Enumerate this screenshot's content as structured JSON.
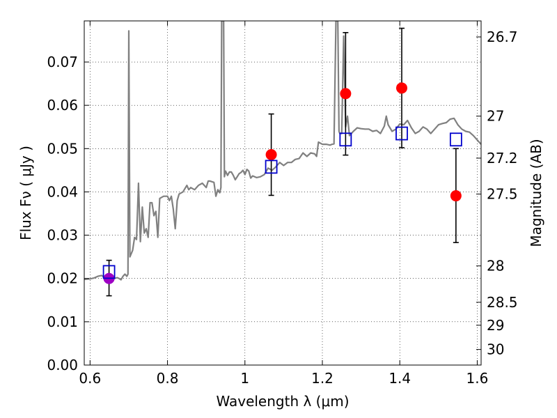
{
  "chart_data": {
    "type": "line",
    "xlabel": "Wavelength  λ (μm)",
    "ylabel": "Flux  Fν  ( μJy )",
    "y2label": "Magnitude (AB)",
    "xlim": [
      0.585,
      1.61
    ],
    "ylim": [
      0.0,
      0.0795
    ],
    "grid": true,
    "x_ticks": [
      {
        "value": 0.6,
        "label": "0.6"
      },
      {
        "value": 0.8,
        "label": "0.8"
      },
      {
        "value": 1.0,
        "label": "1"
      },
      {
        "value": 1.2,
        "label": "1.2"
      },
      {
        "value": 1.4,
        "label": "1.4"
      },
      {
        "value": 1.6,
        "label": "1.6"
      }
    ],
    "y_ticks": [
      {
        "value": 0.0,
        "label": "0.00"
      },
      {
        "value": 0.01,
        "label": "0.01"
      },
      {
        "value": 0.02,
        "label": "0.02"
      },
      {
        "value": 0.03,
        "label": "0.03"
      },
      {
        "value": 0.04,
        "label": "0.04"
      },
      {
        "value": 0.05,
        "label": "0.05"
      },
      {
        "value": 0.06,
        "label": "0.06"
      },
      {
        "value": 0.07,
        "label": "0.07"
      }
    ],
    "y2_ticks": [
      {
        "flux": 0.0758,
        "label": "26.7"
      },
      {
        "flux": 0.0575,
        "label": "27"
      },
      {
        "flux": 0.0478,
        "label": "27.2"
      },
      {
        "flux": 0.0395,
        "label": "27.5"
      },
      {
        "flux": 0.0229,
        "label": "28"
      },
      {
        "flux": 0.0145,
        "label": "28.5"
      },
      {
        "flux": 0.0092,
        "label": "29"
      },
      {
        "flux": 0.0036,
        "label": "30"
      }
    ],
    "series": [
      {
        "kind": "line",
        "color": "#808080",
        "points": [
          [
            0.585,
            0.0198
          ],
          [
            0.6,
            0.0199
          ],
          [
            0.61,
            0.0201
          ],
          [
            0.62,
            0.0205
          ],
          [
            0.63,
            0.0207
          ],
          [
            0.64,
            0.0201
          ],
          [
            0.65,
            0.0197
          ],
          [
            0.66,
            0.0199
          ],
          [
            0.67,
            0.0202
          ],
          [
            0.675,
            0.02
          ],
          [
            0.68,
            0.0197
          ],
          [
            0.685,
            0.0205
          ],
          [
            0.69,
            0.021
          ],
          [
            0.695,
            0.0205
          ],
          [
            0.698,
            0.021
          ],
          [
            0.7,
            0.0772
          ],
          [
            0.703,
            0.025
          ],
          [
            0.71,
            0.0265
          ],
          [
            0.715,
            0.0295
          ],
          [
            0.72,
            0.029
          ],
          [
            0.725,
            0.042
          ],
          [
            0.73,
            0.0285
          ],
          [
            0.735,
            0.0365
          ],
          [
            0.74,
            0.0305
          ],
          [
            0.745,
            0.0315
          ],
          [
            0.75,
            0.0295
          ],
          [
            0.755,
            0.0375
          ],
          [
            0.76,
            0.0375
          ],
          [
            0.765,
            0.0345
          ],
          [
            0.77,
            0.0355
          ],
          [
            0.775,
            0.0295
          ],
          [
            0.78,
            0.0385
          ],
          [
            0.79,
            0.039
          ],
          [
            0.8,
            0.039
          ],
          [
            0.805,
            0.038
          ],
          [
            0.81,
            0.039
          ],
          [
            0.815,
            0.036
          ],
          [
            0.82,
            0.0315
          ],
          [
            0.825,
            0.038
          ],
          [
            0.83,
            0.0395
          ],
          [
            0.84,
            0.04
          ],
          [
            0.85,
            0.0415
          ],
          [
            0.855,
            0.0405
          ],
          [
            0.86,
            0.041
          ],
          [
            0.87,
            0.0405
          ],
          [
            0.88,
            0.0415
          ],
          [
            0.89,
            0.042
          ],
          [
            0.9,
            0.041
          ],
          [
            0.905,
            0.0425
          ],
          [
            0.91,
            0.0425
          ],
          [
            0.92,
            0.0422
          ],
          [
            0.925,
            0.039
          ],
          [
            0.93,
            0.0405
          ],
          [
            0.935,
            0.0398
          ],
          [
            0.938,
            0.041
          ],
          [
            0.94,
            0.0795
          ],
          [
            0.945,
            0.0795
          ],
          [
            0.947,
            0.0435
          ],
          [
            0.95,
            0.0448
          ],
          [
            0.955,
            0.0438
          ],
          [
            0.96,
            0.0446
          ],
          [
            0.965,
            0.0446
          ],
          [
            0.97,
            0.0438
          ],
          [
            0.975,
            0.0428
          ],
          [
            0.98,
            0.0435
          ],
          [
            0.985,
            0.0442
          ],
          [
            0.99,
            0.0445
          ],
          [
            0.995,
            0.045
          ],
          [
            1.0,
            0.044
          ],
          [
            1.005,
            0.0452
          ],
          [
            1.01,
            0.0448
          ],
          [
            1.015,
            0.0432
          ],
          [
            1.02,
            0.0437
          ],
          [
            1.03,
            0.0433
          ],
          [
            1.04,
            0.0435
          ],
          [
            1.05,
            0.044
          ],
          [
            1.06,
            0.0455
          ],
          [
            1.07,
            0.045
          ],
          [
            1.08,
            0.0458
          ],
          [
            1.09,
            0.0468
          ],
          [
            1.1,
            0.0461
          ],
          [
            1.11,
            0.0468
          ],
          [
            1.12,
            0.0468
          ],
          [
            1.13,
            0.0475
          ],
          [
            1.14,
            0.0477
          ],
          [
            1.15,
            0.049
          ],
          [
            1.16,
            0.0482
          ],
          [
            1.17,
            0.049
          ],
          [
            1.18,
            0.0488
          ],
          [
            1.185,
            0.0482
          ],
          [
            1.19,
            0.0515
          ],
          [
            1.2,
            0.051
          ],
          [
            1.21,
            0.051
          ],
          [
            1.22,
            0.0508
          ],
          [
            1.225,
            0.051
          ],
          [
            1.23,
            0.0511
          ],
          [
            1.235,
            0.0795
          ],
          [
            1.24,
            0.0795
          ],
          [
            1.243,
            0.054
          ],
          [
            1.245,
            0.0535
          ],
          [
            1.25,
            0.0535
          ],
          [
            1.255,
            0.076
          ],
          [
            1.26,
            0.055
          ],
          [
            1.265,
            0.0575
          ],
          [
            1.27,
            0.053
          ],
          [
            1.28,
            0.054
          ],
          [
            1.29,
            0.0548
          ],
          [
            1.3,
            0.0546
          ],
          [
            1.31,
            0.0545
          ],
          [
            1.32,
            0.0545
          ],
          [
            1.33,
            0.054
          ],
          [
            1.34,
            0.0542
          ],
          [
            1.35,
            0.0535
          ],
          [
            1.36,
            0.0552
          ],
          [
            1.365,
            0.0575
          ],
          [
            1.37,
            0.0555
          ],
          [
            1.38,
            0.054
          ],
          [
            1.39,
            0.0545
          ],
          [
            1.4,
            0.0557
          ],
          [
            1.41,
            0.0555
          ],
          [
            1.42,
            0.0565
          ],
          [
            1.43,
            0.0548
          ],
          [
            1.44,
            0.0535
          ],
          [
            1.45,
            0.054
          ],
          [
            1.46,
            0.055
          ],
          [
            1.47,
            0.0545
          ],
          [
            1.48,
            0.0535
          ],
          [
            1.49,
            0.0545
          ],
          [
            1.5,
            0.0555
          ],
          [
            1.51,
            0.0558
          ],
          [
            1.52,
            0.056
          ],
          [
            1.53,
            0.0568
          ],
          [
            1.54,
            0.057
          ],
          [
            1.55,
            0.0555
          ],
          [
            1.56,
            0.0545
          ],
          [
            1.57,
            0.054
          ],
          [
            1.58,
            0.0538
          ],
          [
            1.59,
            0.053
          ],
          [
            1.6,
            0.052
          ],
          [
            1.61,
            0.051
          ]
        ]
      },
      {
        "kind": "scatter",
        "marker": "circle",
        "points": [
          {
            "x": 0.649,
            "y": 0.02,
            "err_lo": 0.016,
            "err_hi": 0.0242,
            "color": "#9e00c4"
          },
          {
            "x": 1.068,
            "y": 0.0486,
            "err_lo": 0.0392,
            "err_hi": 0.058,
            "color": "#ff0000"
          },
          {
            "x": 1.26,
            "y": 0.0627,
            "err_lo": 0.0485,
            "err_hi": 0.0768,
            "color": "#ff0000"
          },
          {
            "x": 1.405,
            "y": 0.064,
            "err_lo": 0.0502,
            "err_hi": 0.0778,
            "color": "#ff0000"
          },
          {
            "x": 1.545,
            "y": 0.0391,
            "err_lo": 0.0283,
            "err_hi": 0.05,
            "color": "#ff0000"
          }
        ]
      },
      {
        "kind": "scatter",
        "marker": "open-square",
        "color": "#0000cc",
        "points": [
          {
            "x": 0.649,
            "y": 0.0215
          },
          {
            "x": 1.068,
            "y": 0.0458
          },
          {
            "x": 1.26,
            "y": 0.0521
          },
          {
            "x": 1.405,
            "y": 0.0535
          },
          {
            "x": 1.545,
            "y": 0.0521
          }
        ]
      }
    ]
  }
}
